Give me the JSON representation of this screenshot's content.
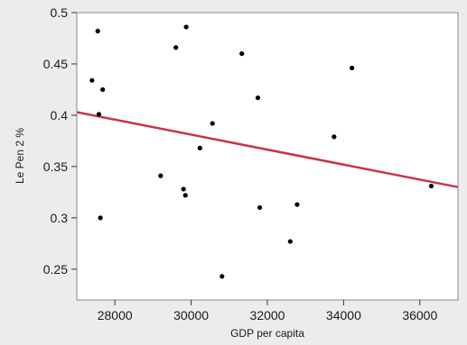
{
  "chart_data": {
    "type": "scatter",
    "title": "",
    "xlabel": "GDP per capita",
    "ylabel": "Le Pen 2 %",
    "xlim": [
      27000,
      37000
    ],
    "ylim": [
      0.22,
      0.5
    ],
    "x_ticks": [
      28000,
      30000,
      32000,
      34000,
      36000
    ],
    "x_tick_labels": [
      "28000",
      "30000",
      "32000",
      "34000",
      "36000"
    ],
    "y_ticks": [
      0.25,
      0.3,
      0.35,
      0.4,
      0.45,
      0.5
    ],
    "y_tick_labels": [
      "0.25",
      "0.3",
      "0.35",
      "0.4",
      "0.45",
      "0.5"
    ],
    "grid": false,
    "points": [
      {
        "x": 27400,
        "y": 0.434
      },
      {
        "x": 27550,
        "y": 0.482
      },
      {
        "x": 27580,
        "y": 0.401
      },
      {
        "x": 27620,
        "y": 0.3
      },
      {
        "x": 27680,
        "y": 0.425
      },
      {
        "x": 29200,
        "y": 0.341
      },
      {
        "x": 29600,
        "y": 0.466
      },
      {
        "x": 29800,
        "y": 0.328
      },
      {
        "x": 29850,
        "y": 0.322
      },
      {
        "x": 29870,
        "y": 0.486
      },
      {
        "x": 30230,
        "y": 0.368
      },
      {
        "x": 30560,
        "y": 0.392
      },
      {
        "x": 30810,
        "y": 0.243
      },
      {
        "x": 31330,
        "y": 0.46
      },
      {
        "x": 31750,
        "y": 0.417
      },
      {
        "x": 31800,
        "y": 0.31
      },
      {
        "x": 32600,
        "y": 0.277
      },
      {
        "x": 32780,
        "y": 0.313
      },
      {
        "x": 33750,
        "y": 0.379
      },
      {
        "x": 34220,
        "y": 0.446
      },
      {
        "x": 36300,
        "y": 0.331
      }
    ],
    "fit_line": {
      "x": [
        27000,
        37000
      ],
      "y": [
        0.403,
        0.33
      ]
    },
    "colors": {
      "points": "#000000",
      "fit_line": "#c8324b",
      "plot_bg": "#ffffff",
      "frame": "#888888"
    }
  }
}
